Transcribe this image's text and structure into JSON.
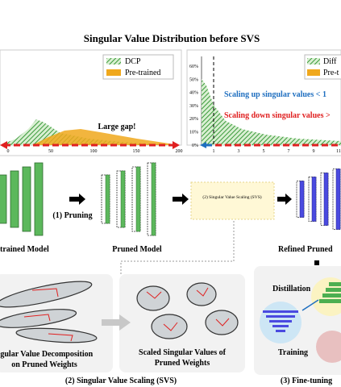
{
  "header": {
    "title": "Singular Value Distribution before SVS"
  },
  "left_plot": {
    "legend": [
      "DCP",
      "Pre-trained"
    ],
    "x_ticks": [
      "0",
      "50",
      "100",
      "150",
      "200"
    ],
    "annotation": "Large gap!"
  },
  "right_plot": {
    "legend": [
      "Diff",
      "Pre-t"
    ],
    "y_ticks": [
      "60%",
      "50%",
      "40%",
      "30%",
      "20%",
      "10%",
      "0%"
    ],
    "x_ticks": [
      "1",
      "3",
      "5",
      "7",
      "9",
      "11"
    ],
    "annotations": [
      "Scaling up singular values < 1",
      "Scaling down singular values >"
    ]
  },
  "pipeline": {
    "step1": "(1) Pruning",
    "svs_box": "(2) Singular Value Scaling (SVS)",
    "models": [
      "trained Model",
      "Pruned Model",
      "Refined Pruned"
    ]
  },
  "svs_panel": {
    "left_caption": [
      "ngular Value Decomposition",
      "on Pruned Weights"
    ],
    "right_caption": [
      "Scaled Singular Values of",
      "Pruned Weights"
    ],
    "label": "(2) Singular Value Scaling (SVS)"
  },
  "finetune_panel": {
    "distillation": "Distillation",
    "training": "Training",
    "label": "(3) Fine-tuning"
  }
}
